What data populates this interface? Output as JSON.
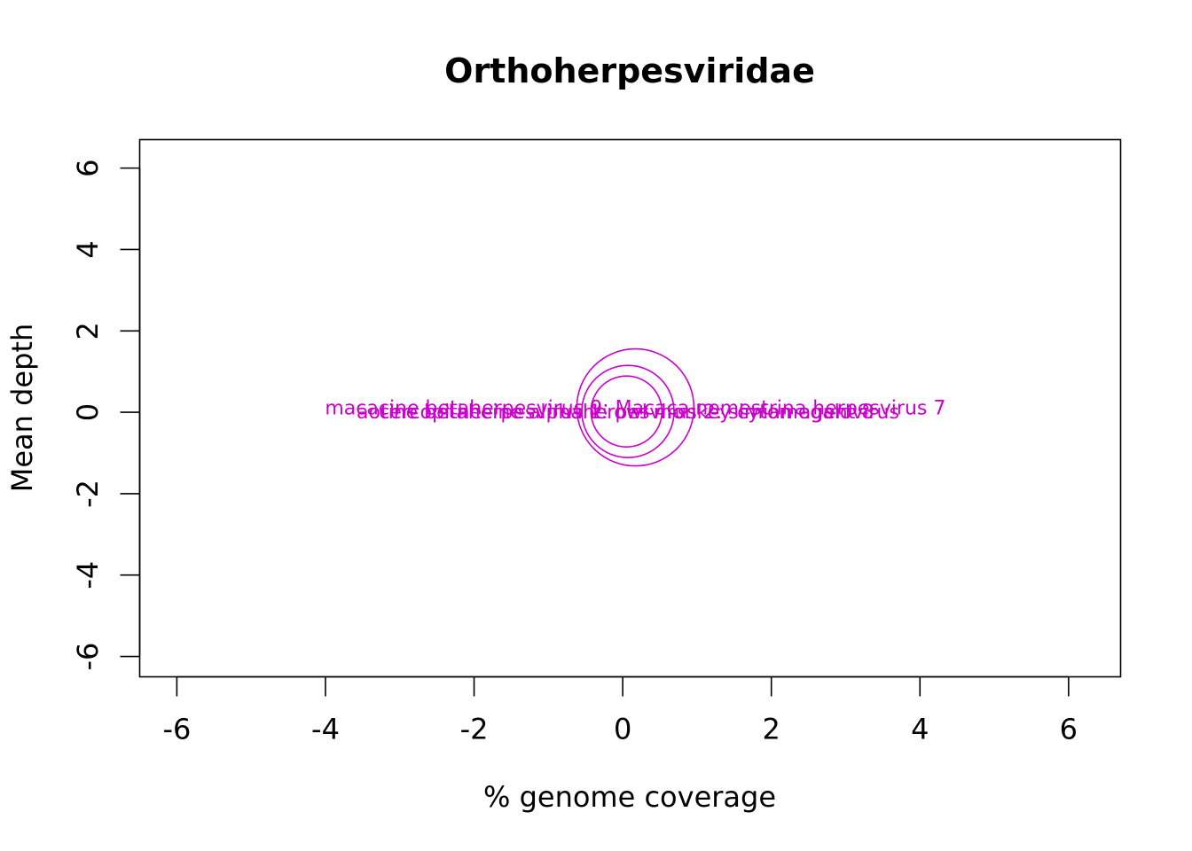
{
  "chart_data": {
    "type": "scatter",
    "title": "Orthoherpesviridae",
    "xlabel": "% genome coverage",
    "ylabel": "Mean depth",
    "xlim": [
      -6.5,
      6.7
    ],
    "ylim": [
      -6.5,
      6.7
    ],
    "xticks": [
      -6,
      -4,
      -2,
      0,
      2,
      4,
      6
    ],
    "yticks": [
      -6,
      -4,
      -2,
      0,
      2,
      4,
      6
    ],
    "grid": false,
    "marker_color": "#CC00CC",
    "points": [
      {
        "label": "macacine betaherpesvirus 9: Macaca nemestrina herpesvirus 7",
        "x": 0.17,
        "y": 0.12,
        "r_px": 66,
        "label_dy": 0
      },
      {
        "label": "aotine betaherpesvirus 1: owl monkey cytomegalovirus",
        "x": 0.07,
        "y": 0.02,
        "r_px": 52,
        "label_dy": 0
      },
      {
        "label": "cercopithecine alphaherpesvirus 2: simian agent 8",
        "x": 0.05,
        "y": 0.02,
        "r_px": 40,
        "label_dy": 0
      }
    ]
  }
}
